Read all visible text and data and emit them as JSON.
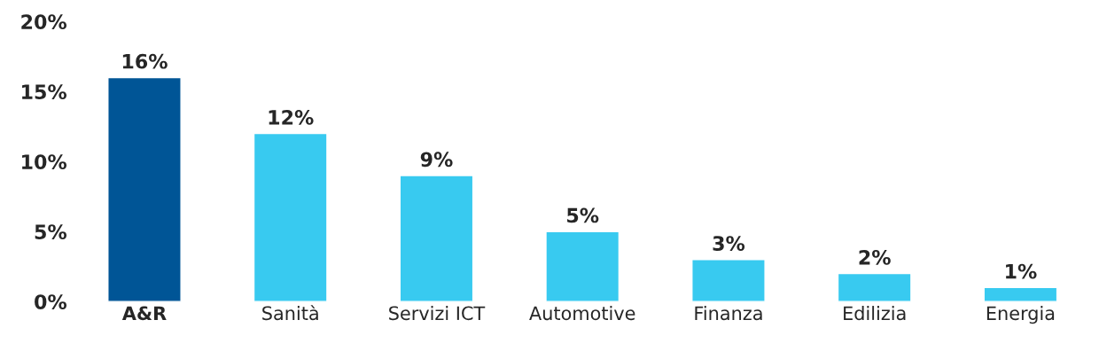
{
  "chart_data": {
    "type": "bar",
    "categories": [
      "A&R",
      "Sanità",
      "Servizi ICT",
      "Automotive",
      "Finanza",
      "Edilizia",
      "Energia"
    ],
    "values": [
      16,
      12,
      9,
      5,
      3,
      2,
      1
    ],
    "colors": [
      "#005596",
      "#38caf0",
      "#38caf0",
      "#38caf0",
      "#38caf0",
      "#38caf0",
      "#38caf0"
    ],
    "value_labels": [
      "16%",
      "12%",
      "9%",
      "5%",
      "3%",
      "2%",
      "1%"
    ],
    "ylim": [
      0,
      20
    ],
    "yticks": [
      {
        "value": 0,
        "label": "0%"
      },
      {
        "value": 5,
        "label": "5%"
      },
      {
        "value": 10,
        "label": "10%"
      },
      {
        "value": 15,
        "label": "15%"
      },
      {
        "value": 20,
        "label": "20%"
      }
    ],
    "grid": false,
    "legend": false
  }
}
